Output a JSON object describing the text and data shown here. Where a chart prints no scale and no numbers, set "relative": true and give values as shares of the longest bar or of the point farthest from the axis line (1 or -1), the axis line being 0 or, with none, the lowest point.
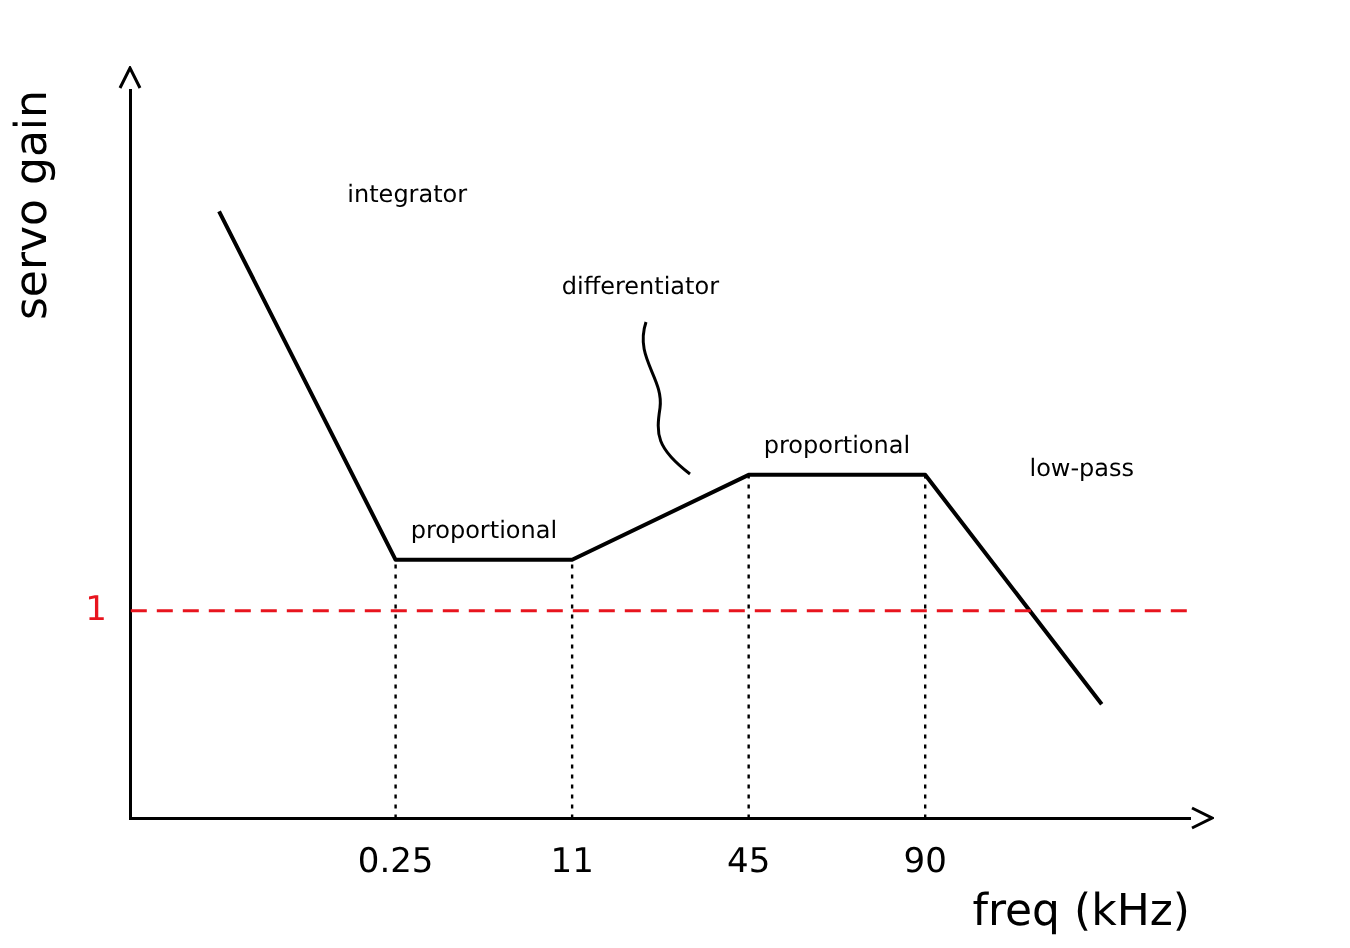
{
  "chart_data": {
    "type": "line",
    "relative": true,
    "xlabel": "freq (kHz)",
    "ylabel": "servo gain",
    "categories": [
      null,
      "0.25",
      "11",
      "45",
      "90",
      null
    ],
    "series": [
      {
        "color": "#000000",
        "values": [
          1,
          0.426,
          0.426,
          0.566,
          0.566,
          0.188
        ]
      }
    ],
    "ref_lines": [
      {
        "axis": "y",
        "value": 0.342,
        "color": "#e8141e",
        "line_style": "dashed"
      },
      {
        "axis": "x",
        "value": "0.25",
        "color": "#000000",
        "line_style": "dotted"
      },
      {
        "axis": "x",
        "value": "11",
        "color": "#000000",
        "line_style": "dotted"
      },
      {
        "axis": "x",
        "value": "45",
        "color": "#000000",
        "line_style": "dotted"
      },
      {
        "axis": "x",
        "value": "90",
        "color": "#000000",
        "line_style": "dotted"
      }
    ],
    "annotations": [
      "integrator",
      "proportional",
      "differentiator",
      "proportional",
      "low-pass",
      "1"
    ],
    "marker": "none",
    "line_style": "solid",
    "grid": false,
    "legend": false
  }
}
